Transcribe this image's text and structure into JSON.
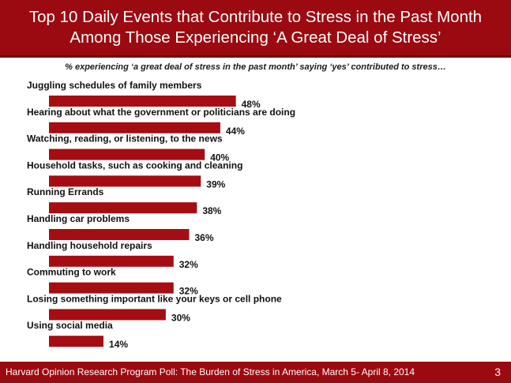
{
  "header": {
    "title_line1": "Top 10 Daily Events that Contribute to Stress in the Past Month",
    "title_line2": "Among Those Experiencing ‘A Great Deal of Stress’"
  },
  "subtitle": "% experiencing ‘a great deal of stress in the past month’ saying ‘yes’ contributed to stress…",
  "chart_data": {
    "type": "bar",
    "orientation": "horizontal",
    "categories": [
      "Juggling schedules of family members",
      "Hearing about what the government or politicians are doing",
      "Watching, reading, or listening, to the news",
      "Household tasks, such as cooking and cleaning",
      "Running Errands",
      "Handling car problems",
      "Handling household repairs",
      "Commuting to work",
      "Losing something important like your keys or cell phone",
      "Using social  media"
    ],
    "values": [
      48,
      44,
      40,
      39,
      38,
      36,
      32,
      32,
      30,
      14
    ],
    "value_labels": [
      "48%",
      "44%",
      "40%",
      "39%",
      "38%",
      "36%",
      "32%",
      "32%",
      "30%",
      "14%"
    ],
    "xlim": [
      0,
      100
    ],
    "grid": false,
    "bar_color": "#a50d13"
  },
  "footer": {
    "source": "Harvard Opinion Research Program  Poll: The Burden of Stress in America, March 5- April 8, 2014",
    "page_number": "3"
  },
  "colors": {
    "brand": "#9b0a10",
    "bar": "#a50d13"
  }
}
